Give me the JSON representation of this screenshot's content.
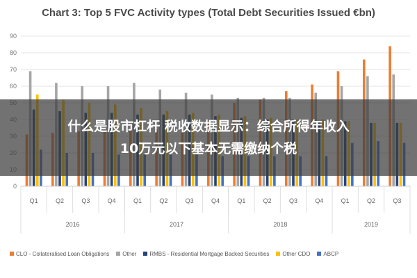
{
  "chart_data": {
    "type": "bar",
    "title": "Chart 3: Top 5 FVC Activity types (Total Debt Securities Issued €bn)",
    "ylim": [
      0,
      90
    ],
    "yticks": [
      0,
      10,
      20,
      30,
      40,
      50,
      60,
      70,
      80,
      90
    ],
    "grid": true,
    "legend_position": "bottom",
    "categories": [
      "Q1",
      "Q2",
      "Q3",
      "Q4",
      "Q1",
      "Q2",
      "Q3",
      "Q4",
      "Q1",
      "Q2",
      "Q3",
      "Q4",
      "Q1",
      "Q2",
      "Q3"
    ],
    "groups": [
      {
        "label": "2016",
        "count": 4
      },
      {
        "label": "2017",
        "count": 4
      },
      {
        "label": "2018",
        "count": 4
      },
      {
        "label": "2019",
        "count": 3
      }
    ],
    "series": [
      {
        "name": "CLO - Collateralised Loan Obligations",
        "color": "#ed7d31",
        "values": [
          31,
          32,
          33,
          33,
          34,
          34,
          37,
          38,
          50,
          52,
          57,
          61,
          69,
          76,
          84
        ]
      },
      {
        "name": "Other",
        "color": "#a5a5a5",
        "values": [
          69,
          62,
          60,
          60,
          62,
          58,
          56,
          55,
          53,
          53,
          53,
          56,
          60,
          66,
          67
        ]
      },
      {
        "name": "RMBS - Residential Mortgage Backed Securities",
        "color": "#264478",
        "values": [
          46,
          45,
          44,
          44,
          43,
          43,
          43,
          42,
          41,
          40,
          40,
          39,
          39,
          38,
          38
        ]
      },
      {
        "name": "Other CDO",
        "color": "#ffc000",
        "values": [
          55,
          52,
          50,
          49,
          47,
          45,
          44,
          43,
          42,
          41,
          40,
          40,
          39,
          38,
          38
        ]
      },
      {
        "name": "ABCP",
        "color": "#4472c4",
        "values": [
          22,
          20,
          20,
          19,
          19,
          19,
          19,
          18,
          18,
          18,
          18,
          18,
          26,
          27,
          26
        ]
      }
    ]
  },
  "overlay": {
    "line1": "什么是股市杠杆 税收数据显示：综合所得年收入",
    "line2": "10万元以下基本无需缴纳个税"
  }
}
